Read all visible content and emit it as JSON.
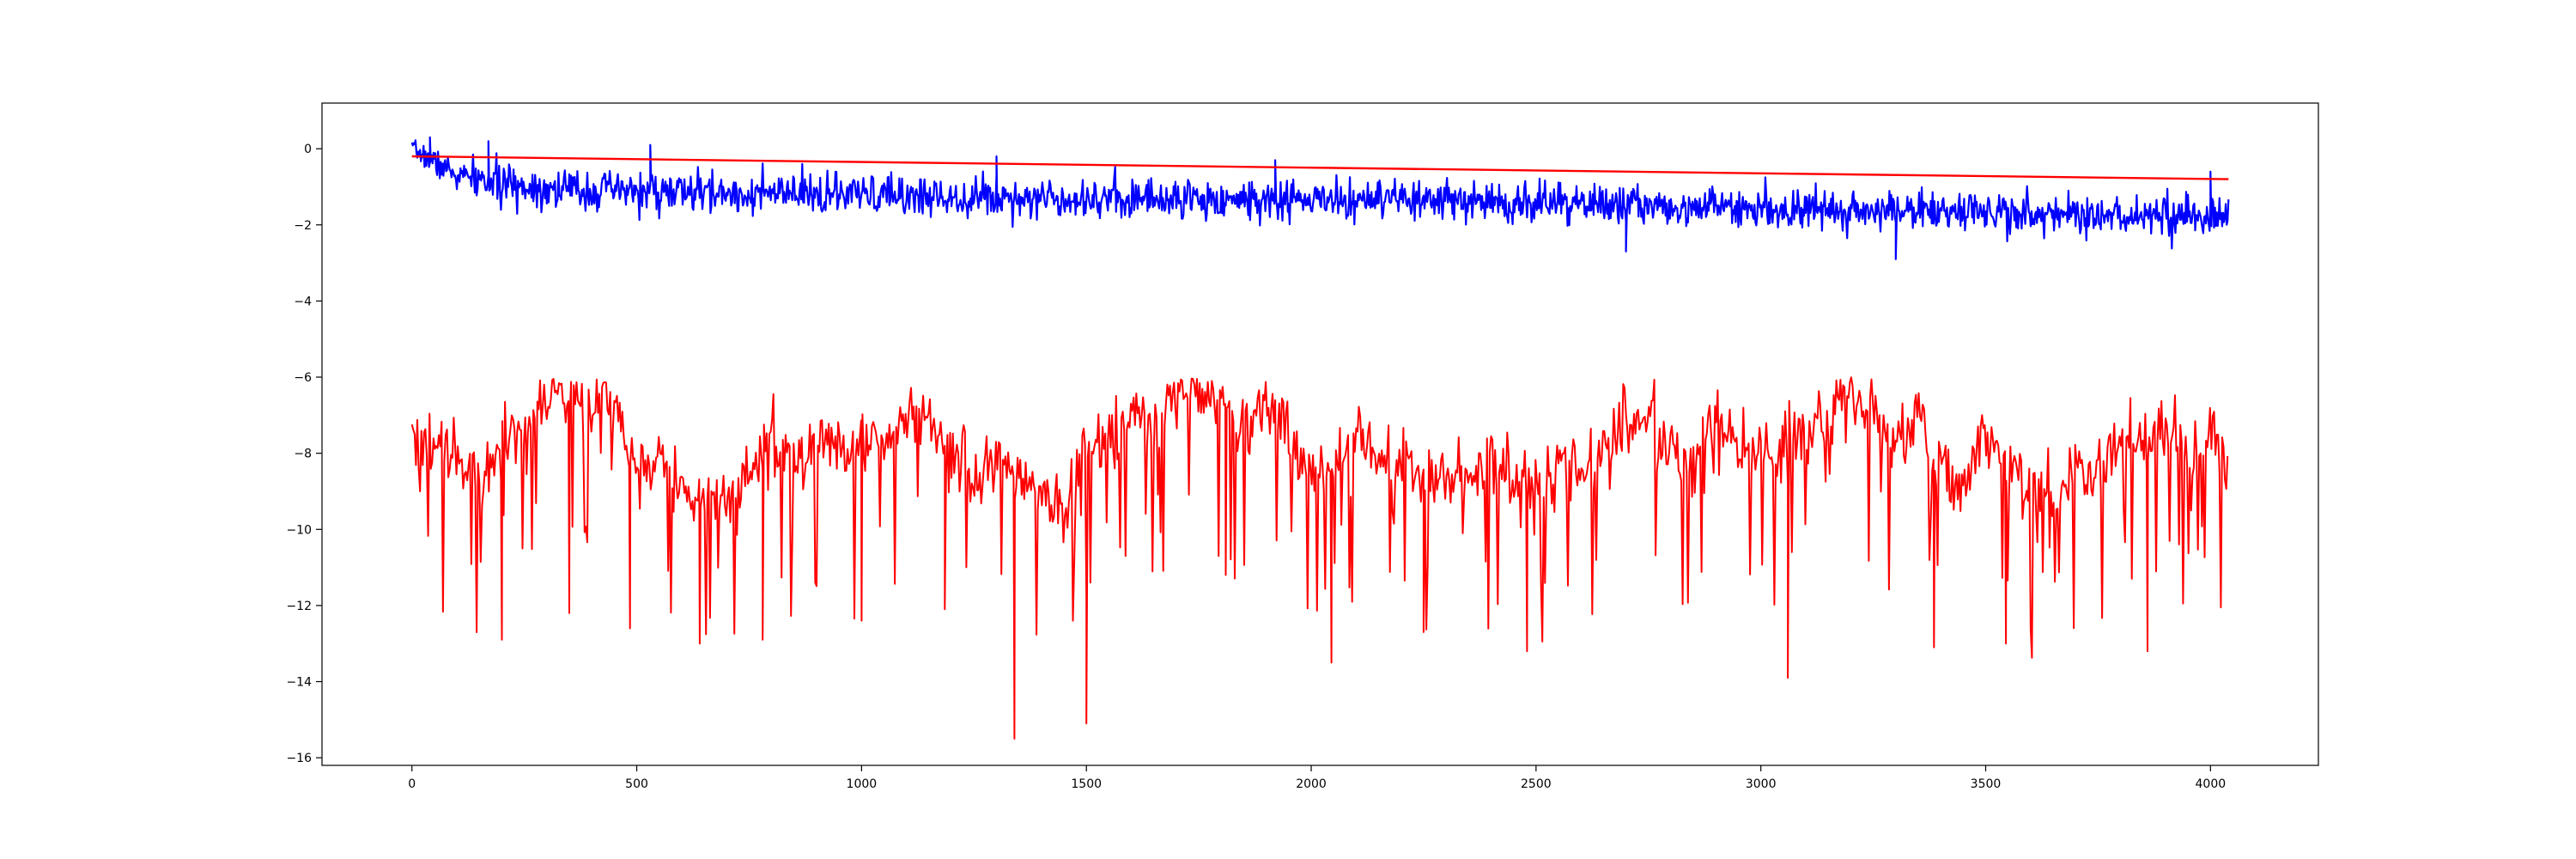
{
  "chart_data": {
    "type": "line",
    "title": "",
    "xlabel": "",
    "ylabel": "",
    "xlim": [
      -200,
      4240
    ],
    "ylim": [
      -16.2,
      1.2
    ],
    "grid": false,
    "legend": "none",
    "xticks": [
      0,
      500,
      1000,
      1500,
      2000,
      2500,
      3000,
      3500,
      4000
    ],
    "yticks": [
      0,
      -2,
      -4,
      -6,
      -8,
      -10,
      -12,
      -14,
      -16
    ],
    "xtick_labels": [
      "0",
      "500",
      "1000",
      "1500",
      "2000",
      "2500",
      "3000",
      "3500",
      "4000"
    ],
    "ytick_labels": [
      "0",
      "−2",
      "−4",
      "−6",
      "−8",
      "−10",
      "−12",
      "−14",
      "−16"
    ],
    "series": [
      {
        "color": "#0000ff",
        "style": "noisy",
        "seed": 7,
        "x": [
          0,
          100,
          200,
          400,
          800,
          1200,
          1600,
          2000,
          2400,
          2800,
          3200,
          3600,
          4040
        ],
        "y": [
          0.0,
          -0.7,
          -0.95,
          -1.1,
          -1.2,
          -1.25,
          -1.3,
          -1.35,
          -1.4,
          -1.5,
          -1.6,
          -1.7,
          -1.8
        ],
        "noise_amplitude": [
          0.15,
          0.3,
          0.35,
          0.35,
          0.35,
          0.35,
          0.35,
          0.35,
          0.35,
          0.35,
          0.35,
          0.35,
          0.35
        ],
        "spikes": [
          [
            40,
            0.3
          ],
          [
            170,
            0.2
          ],
          [
            530,
            0.1
          ],
          [
            1300,
            -0.2
          ],
          [
            1920,
            -0.3
          ],
          [
            2700,
            -2.7
          ],
          [
            3300,
            -2.9
          ],
          [
            4000,
            -0.6
          ]
        ]
      },
      {
        "color": "#ff0000",
        "style": "line",
        "x": [
          0,
          4040
        ],
        "y": [
          -0.2,
          -0.8
        ]
      },
      {
        "color": "#ff0000",
        "style": "volatile",
        "seed": 19,
        "x": [
          0,
          50,
          100,
          150,
          200,
          250,
          300,
          330,
          380,
          420,
          460,
          500,
          550,
          600,
          640,
          700,
          760,
          800,
          860,
          920,
          980,
          1000,
          1050,
          1100,
          1150,
          1200,
          1250,
          1300,
          1340,
          1400,
          1450,
          1500,
          1550,
          1600,
          1650,
          1700,
          1750,
          1800,
          1850,
          1900,
          1950,
          2000,
          2050,
          2100,
          2150,
          2200,
          2250,
          2300,
          2350,
          2400,
          2450,
          2500,
          2550,
          2600,
          2650,
          2700,
          2750,
          2800,
          2850,
          2900,
          2950,
          3000,
          3050,
          3100,
          3150,
          3200,
          3250,
          3300,
          3350,
          3400,
          3450,
          3500,
          3550,
          3600,
          3650,
          3700,
          3750,
          3800,
          3850,
          3900,
          3950,
          4000,
          4040
        ],
        "y": [
          -8.0,
          -7.8,
          -8.2,
          -8.5,
          -8.0,
          -7.2,
          -6.6,
          -6.4,
          -7.0,
          -6.2,
          -6.8,
          -8.6,
          -8.0,
          -8.8,
          -9.6,
          -9.2,
          -8.5,
          -7.5,
          -8.2,
          -7.5,
          -8.2,
          -7.4,
          -7.8,
          -7.2,
          -6.8,
          -8.0,
          -8.8,
          -8.0,
          -8.6,
          -9.0,
          -9.4,
          -8.0,
          -7.8,
          -7.0,
          -7.2,
          -6.3,
          -6.1,
          -6.8,
          -7.2,
          -6.4,
          -7.8,
          -8.3,
          -8.6,
          -7.6,
          -8.2,
          -8.0,
          -8.8,
          -8.6,
          -8.9,
          -8.2,
          -8.7,
          -8.8,
          -8.3,
          -8.4,
          -8.1,
          -7.0,
          -7.3,
          -8.0,
          -8.4,
          -7.2,
          -7.8,
          -8.3,
          -7.5,
          -7.4,
          -6.8,
          -6.4,
          -6.8,
          -7.6,
          -7.0,
          -8.5,
          -9.0,
          -7.4,
          -8.2,
          -9.0,
          -9.3,
          -8.6,
          -8.6,
          -7.6,
          -7.8,
          -7.4,
          -8.0,
          -7.6,
          -8.4
        ],
        "drop_prob": 0.09,
        "spikes": [
          [
            200,
            -12.9
          ],
          [
            350,
            -12.2
          ],
          [
            485,
            -12.6
          ],
          [
            640,
            -13.0
          ],
          [
            780,
            -12.9
          ],
          [
            1000,
            -12.4
          ],
          [
            1185,
            -12.1
          ],
          [
            1340,
            -15.5
          ],
          [
            1500,
            -15.1
          ],
          [
            1810,
            -11.2
          ],
          [
            2045,
            -13.5
          ],
          [
            2250,
            -12.7
          ],
          [
            2480,
            -13.2
          ],
          [
            3060,
            -13.9
          ],
          [
            3385,
            -13.1
          ],
          [
            3545,
            -13.0
          ],
          [
            3860,
            -13.2
          ]
        ]
      }
    ]
  }
}
